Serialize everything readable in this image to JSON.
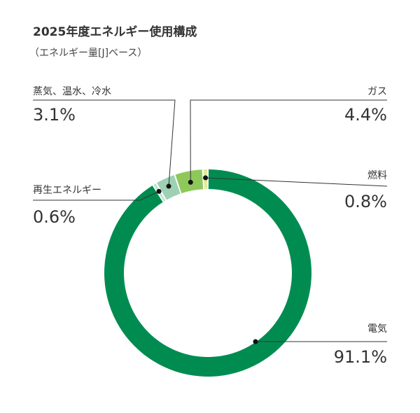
{
  "chart_data": {
    "type": "pie",
    "title": "2025年度エネルギー使用構成",
    "subtitle": "（エネルギー量[J]ベース）",
    "slices": [
      {
        "label": "電気",
        "value": 91.1,
        "value_label": "91.1%",
        "color": "#008c50"
      },
      {
        "label": "再生エネルギー",
        "value": 0.6,
        "value_label": "0.6%",
        "color": "#bfe3cf"
      },
      {
        "label": "蒸気、温水、冷水",
        "value": 3.1,
        "value_label": "3.1%",
        "color": "#9ed0b3"
      },
      {
        "label": "ガス",
        "value": 4.4,
        "value_label": "4.4%",
        "color": "#8ec85a"
      },
      {
        "label": "燃料",
        "value": 0.8,
        "value_label": "0.8%",
        "color": "#e3eb9e"
      }
    ]
  }
}
